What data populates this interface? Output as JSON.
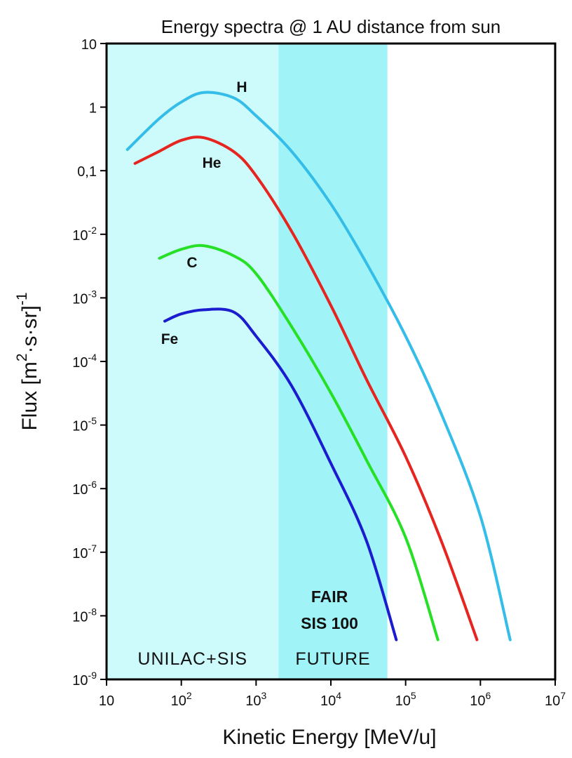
{
  "chart_data": {
    "type": "line",
    "title": "Energy spectra @ 1 AU distance from sun",
    "x_label": "Kinetic Energy [MeV/u]",
    "y_label": "Flux [m^2·s·sr]^-1",
    "log_x": true,
    "log_y": true,
    "xlim": [
      10,
      10000000
    ],
    "ylim": [
      1e-09,
      10
    ],
    "xticks": [
      10,
      {
        "value": 100,
        "label": "10^2"
      },
      {
        "value": 1000,
        "label": "10^3"
      },
      {
        "value": 10000,
        "label": "10^4"
      },
      {
        "value": 100000,
        "label": "10^5"
      },
      {
        "value": 1000000,
        "label": "10^6"
      },
      {
        "value": 10000000,
        "label": "10^7"
      }
    ],
    "yticks": [
      10,
      1,
      {
        "value": 0.1,
        "label": "0,1"
      },
      {
        "value": 0.01,
        "label": "10^-2"
      },
      {
        "value": 0.001,
        "label": "10^-3"
      },
      {
        "value": 0.0001,
        "label": "10^-4"
      },
      {
        "value": 1e-05,
        "label": "10^-5"
      },
      {
        "value": 1e-06,
        "label": "10^-6"
      },
      {
        "value": 1e-07,
        "label": "10^-7"
      },
      {
        "value": 1e-08,
        "label": "10^-8"
      },
      {
        "value": 1e-09,
        "label": "10^-9"
      }
    ],
    "regions": [
      {
        "xlim": [
          10,
          2000
        ],
        "color": "#cdfafa",
        "label": "UNILAC+SIS"
      },
      {
        "xlim": [
          2000,
          57000
        ],
        "color": "#a0f4f8",
        "label": "FUTURE",
        "sublabel": [
          "FAIR",
          "SIS 100"
        ],
        "sublabel_color": "#1f3fd6"
      }
    ],
    "series": [
      {
        "name": "H",
        "color": "#33bde8",
        "x": [
          19,
          50,
          100,
          200,
          500,
          1000,
          3000,
          10000,
          30000,
          100000,
          300000,
          1000000,
          2500000
        ],
        "values": [
          0.215,
          0.65,
          1.2,
          1.7,
          1.4,
          0.73,
          0.2,
          0.03,
          0.0035,
          0.00025,
          1.5e-05,
          3.7e-07,
          4.2e-09
        ]
      },
      {
        "name": "He",
        "color": "#e62420",
        "x": [
          24,
          50,
          100,
          200,
          500,
          1000,
          3000,
          10000,
          30000,
          100000,
          300000,
          900000
        ],
        "values": [
          0.13,
          0.2,
          0.3,
          0.33,
          0.2,
          0.083,
          0.011,
          0.00076,
          5.2e-05,
          3.2e-06,
          1.5e-07,
          4.2e-09
        ]
      },
      {
        "name": "C",
        "color": "#25e025",
        "x": [
          51,
          100,
          200,
          500,
          1000,
          3000,
          10000,
          30000,
          100000,
          270000
        ],
        "values": [
          0.0042,
          0.0058,
          0.0066,
          0.0046,
          0.0024,
          0.00035,
          3.2e-05,
          2.8e-06,
          1.7e-07,
          4.2e-09
        ]
      },
      {
        "name": "Fe",
        "color": "#1b1bcf",
        "x": [
          60,
          100,
          200,
          500,
          1000,
          3000,
          10000,
          30000,
          75000
        ],
        "values": [
          0.00043,
          0.00056,
          0.00065,
          0.0006,
          0.00025,
          4.1e-05,
          2.5e-06,
          1.5e-07,
          4.2e-09
        ]
      }
    ]
  }
}
